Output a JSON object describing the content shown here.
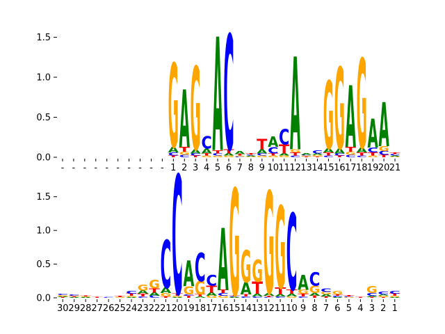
{
  "chart_data": [
    {
      "type": "sequence-logo",
      "ylim": [
        0,
        1.6
      ],
      "yticks": [
        "0.0",
        "0.5",
        "1.0",
        "1.5"
      ],
      "colors": {
        "A": "#008000",
        "C": "#0000ff",
        "G": "#ffa500",
        "T": "#ff0000"
      },
      "positions": [
        {
          "label": "-",
          "stack": []
        },
        {
          "label": "-",
          "stack": []
        },
        {
          "label": "-",
          "stack": []
        },
        {
          "label": "-",
          "stack": []
        },
        {
          "label": "-",
          "stack": []
        },
        {
          "label": "-",
          "stack": []
        },
        {
          "label": "-",
          "stack": []
        },
        {
          "label": "-",
          "stack": []
        },
        {
          "label": "-",
          "stack": []
        },
        {
          "label": "-",
          "stack": []
        },
        {
          "label": "1",
          "stack": [
            [
              "T",
              0.02
            ],
            [
              "C",
              0.04
            ],
            [
              "A",
              0.07
            ],
            [
              "G",
              1.05
            ]
          ]
        },
        {
          "label": "2",
          "stack": [
            [
              "C",
              0.03
            ],
            [
              "G",
              0.04
            ],
            [
              "T",
              0.06
            ],
            [
              "A",
              0.72
            ]
          ]
        },
        {
          "label": "3",
          "stack": [
            [
              "T",
              0.02
            ],
            [
              "C",
              0.03
            ],
            [
              "A",
              0.05
            ],
            [
              "G",
              1.04
            ]
          ]
        },
        {
          "label": "4",
          "stack": [
            [
              "G",
              0.02
            ],
            [
              "T",
              0.03
            ],
            [
              "A",
              0.06
            ],
            [
              "C",
              0.16
            ]
          ]
        },
        {
          "label": "5",
          "stack": [
            [
              "G",
              0.02
            ],
            [
              "C",
              0.03
            ],
            [
              "T",
              0.04
            ],
            [
              "A",
              1.42
            ]
          ]
        },
        {
          "label": "6",
          "stack": [
            [
              "G",
              0.02
            ],
            [
              "A",
              0.03
            ],
            [
              "T",
              0.05
            ],
            [
              "C",
              1.44
            ]
          ]
        },
        {
          "label": "7",
          "stack": [
            [
              "C",
              0.01
            ],
            [
              "G",
              0.01
            ],
            [
              "T",
              0.02
            ],
            [
              "A",
              0.04
            ]
          ]
        },
        {
          "label": "8",
          "stack": [
            [
              "G",
              0.01
            ],
            [
              "A",
              0.01
            ],
            [
              "C",
              0.01
            ],
            [
              "T",
              0.02
            ]
          ]
        },
        {
          "label": "9",
          "stack": [
            [
              "G",
              0.02
            ],
            [
              "C",
              0.03
            ],
            [
              "A",
              0.05
            ],
            [
              "T",
              0.13
            ]
          ]
        },
        {
          "label": "10",
          "stack": [
            [
              "G",
              0.02
            ],
            [
              "T",
              0.03
            ],
            [
              "C",
              0.08
            ],
            [
              "A",
              0.13
            ]
          ]
        },
        {
          "label": "11",
          "stack": [
            [
              "G",
              0.02
            ],
            [
              "A",
              0.03
            ],
            [
              "T",
              0.11
            ],
            [
              "C",
              0.19
            ]
          ]
        },
        {
          "label": "12",
          "stack": [
            [
              "C",
              0.02
            ],
            [
              "T",
              0.04
            ],
            [
              "G",
              0.04
            ],
            [
              "A",
              1.16
            ]
          ]
        },
        {
          "label": "13",
          "stack": [
            [
              "T",
              0.01
            ],
            [
              "G",
              0.01
            ],
            [
              "C",
              0.01
            ],
            [
              "A",
              0.02
            ]
          ]
        },
        {
          "label": "14",
          "stack": [
            [
              "T",
              0.01
            ],
            [
              "G",
              0.02
            ],
            [
              "A",
              0.02
            ],
            [
              "C",
              0.04
            ]
          ]
        },
        {
          "label": "15",
          "stack": [
            [
              "C",
              0.02
            ],
            [
              "T",
              0.04
            ],
            [
              "A",
              0.05
            ],
            [
              "G",
              0.85
            ]
          ]
        },
        {
          "label": "16",
          "stack": [
            [
              "T",
              0.02
            ],
            [
              "C",
              0.03
            ],
            [
              "A",
              0.06
            ],
            [
              "G",
              1.02
            ]
          ]
        },
        {
          "label": "17",
          "stack": [
            [
              "C",
              0.03
            ],
            [
              "G",
              0.04
            ],
            [
              "T",
              0.06
            ],
            [
              "A",
              0.77
            ]
          ]
        },
        {
          "label": "18",
          "stack": [
            [
              "C",
              0.02
            ],
            [
              "T",
              0.04
            ],
            [
              "A",
              0.06
            ],
            [
              "G",
              1.12
            ]
          ]
        },
        {
          "label": "19",
          "stack": [
            [
              "G",
              0.02
            ],
            [
              "T",
              0.04
            ],
            [
              "C",
              0.06
            ],
            [
              "A",
              0.36
            ]
          ]
        },
        {
          "label": "20",
          "stack": [
            [
              "T",
              0.03
            ],
            [
              "C",
              0.05
            ],
            [
              "G",
              0.06
            ],
            [
              "A",
              0.55
            ]
          ]
        },
        {
          "label": "21",
          "stack": [
            [
              "G",
              0.01
            ],
            [
              "A",
              0.01
            ],
            [
              "C",
              0.02
            ],
            [
              "T",
              0.02
            ]
          ]
        }
      ]
    },
    {
      "type": "sequence-logo",
      "ylim": [
        0,
        1.9
      ],
      "yticks": [
        "0.0",
        "0.5",
        "1.0",
        "1.5"
      ],
      "colors": {
        "A": "#008000",
        "C": "#0000ff",
        "G": "#ffa500",
        "T": "#ff0000"
      },
      "positions": [
        {
          "label": "30",
          "stack": [
            [
              "T",
              0.01
            ],
            [
              "A",
              0.01
            ],
            [
              "G",
              0.02
            ],
            [
              "C",
              0.02
            ]
          ]
        },
        {
          "label": "29",
          "stack": [
            [
              "A",
              0.01
            ],
            [
              "T",
              0.01
            ],
            [
              "G",
              0.01
            ],
            [
              "C",
              0.02
            ]
          ]
        },
        {
          "label": "28",
          "stack": [
            [
              "A",
              0.01
            ],
            [
              "G",
              0.01
            ],
            [
              "T",
              0.01
            ]
          ]
        },
        {
          "label": "27",
          "stack": [
            [
              "T",
              0.01
            ]
          ]
        },
        {
          "label": "26",
          "stack": [
            [
              "C",
              0.01
            ]
          ]
        },
        {
          "label": "25",
          "stack": [
            [
              "G",
              0.01
            ],
            [
              "T",
              0.02
            ]
          ]
        },
        {
          "label": "24",
          "stack": [
            [
              "A",
              0.01
            ],
            [
              "G",
              0.02
            ],
            [
              "T",
              0.03
            ],
            [
              "C",
              0.04
            ]
          ]
        },
        {
          "label": "23",
          "stack": [
            [
              "C",
              0.02
            ],
            [
              "T",
              0.04
            ],
            [
              "A",
              0.05
            ],
            [
              "G",
              0.09
            ]
          ]
        },
        {
          "label": "22",
          "stack": [
            [
              "C",
              0.03
            ],
            [
              "A",
              0.05
            ],
            [
              "T",
              0.06
            ],
            [
              "G",
              0.13
            ]
          ]
        },
        {
          "label": "21",
          "stack": [
            [
              "T",
              0.02
            ],
            [
              "G",
              0.05
            ],
            [
              "A",
              0.08
            ],
            [
              "C",
              0.71
            ]
          ]
        },
        {
          "label": "20",
          "stack": [
            [
              "A",
              0.01
            ],
            [
              "G",
              0.02
            ],
            [
              "T",
              0.03
            ],
            [
              "C",
              1.77
            ]
          ]
        },
        {
          "label": "19",
          "stack": [
            [
              "T",
              0.03
            ],
            [
              "C",
              0.02
            ],
            [
              "G",
              0.12
            ],
            [
              "A",
              0.38
            ]
          ]
        },
        {
          "label": "18",
          "stack": [
            [
              "A",
              0.02
            ],
            [
              "T",
              0.03
            ],
            [
              "G",
              0.2
            ],
            [
              "C",
              0.42
            ]
          ]
        },
        {
          "label": "17",
          "stack": [
            [
              "G",
              0.03
            ],
            [
              "A",
              0.05
            ],
            [
              "T",
              0.1
            ],
            [
              "C",
              0.16
            ]
          ]
        },
        {
          "label": "16",
          "stack": [
            [
              "G",
              0.03
            ],
            [
              "C",
              0.04
            ],
            [
              "T",
              0.05
            ],
            [
              "A",
              0.92
            ]
          ]
        },
        {
          "label": "15",
          "stack": [
            [
              "A",
              0.01
            ],
            [
              "C",
              0.01
            ],
            [
              "T",
              0.02
            ],
            [
              "G",
              1.59
            ]
          ]
        },
        {
          "label": "14",
          "stack": [
            [
              "C",
              0.02
            ],
            [
              "T",
              0.03
            ],
            [
              "A",
              0.18
            ],
            [
              "G",
              0.48
            ]
          ]
        },
        {
          "label": "13",
          "stack": [
            [
              "C",
              0.02
            ],
            [
              "A",
              0.04
            ],
            [
              "T",
              0.18
            ],
            [
              "G",
              0.33
            ]
          ]
        },
        {
          "label": "12",
          "stack": [
            [
              "C",
              0.01
            ],
            [
              "T",
              0.02
            ],
            [
              "A",
              0.04
            ],
            [
              "G",
              1.52
            ]
          ]
        },
        {
          "label": "11",
          "stack": [
            [
              "C",
              0.02
            ],
            [
              "A",
              0.03
            ],
            [
              "T",
              0.1
            ],
            [
              "G",
              1.22
            ]
          ]
        },
        {
          "label": "10",
          "stack": [
            [
              "G",
              0.02
            ],
            [
              "A",
              0.04
            ],
            [
              "T",
              0.06
            ],
            [
              "C",
              1.14
            ]
          ]
        },
        {
          "label": "9",
          "stack": [
            [
              "C",
              0.02
            ],
            [
              "T",
              0.04
            ],
            [
              "G",
              0.06
            ],
            [
              "A",
              0.22
            ]
          ]
        },
        {
          "label": "8",
          "stack": [
            [
              "T",
              0.03
            ],
            [
              "A",
              0.04
            ],
            [
              "G",
              0.11
            ],
            [
              "C",
              0.2
            ]
          ]
        },
        {
          "label": "7",
          "stack": [
            [
              "T",
              0.02
            ],
            [
              "A",
              0.03
            ],
            [
              "G",
              0.04
            ],
            [
              "C",
              0.05
            ]
          ]
        },
        {
          "label": "6",
          "stack": [
            [
              "A",
              0.01
            ],
            [
              "C",
              0.02
            ],
            [
              "T",
              0.02
            ],
            [
              "G",
              0.05
            ]
          ]
        },
        {
          "label": "5",
          "stack": [
            [
              "G",
              0.01
            ],
            [
              "C",
              0.01
            ],
            [
              "T",
              0.02
            ]
          ]
        },
        {
          "label": "4",
          "stack": [
            [
              "T",
              0.01
            ]
          ]
        },
        {
          "label": "3",
          "stack": [
            [
              "T",
              0.01
            ],
            [
              "A",
              0.02
            ],
            [
              "C",
              0.04
            ],
            [
              "G",
              0.1
            ]
          ]
        },
        {
          "label": "2",
          "stack": [
            [
              "T",
              0.01
            ],
            [
              "G",
              0.02
            ],
            [
              "A",
              0.02
            ],
            [
              "C",
              0.04
            ]
          ]
        },
        {
          "label": "1",
          "stack": [
            [
              "A",
              0.01
            ],
            [
              "G",
              0.02
            ],
            [
              "T",
              0.03
            ],
            [
              "C",
              0.04
            ]
          ]
        }
      ]
    }
  ]
}
